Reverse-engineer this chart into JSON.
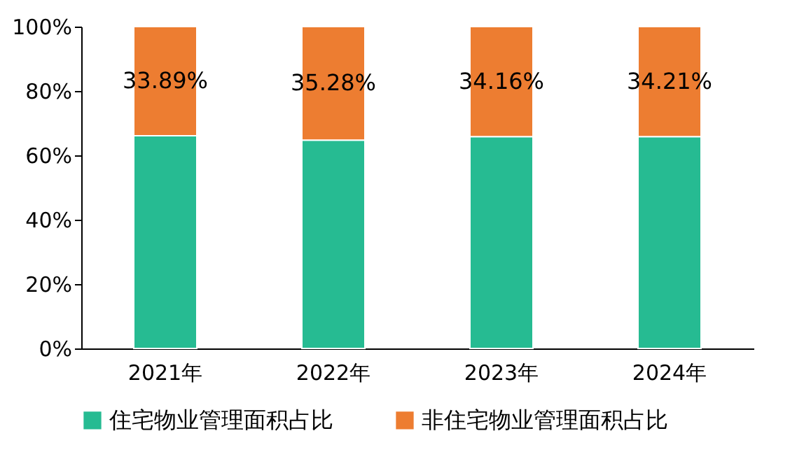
{
  "chart_data": {
    "type": "bar",
    "stacked": true,
    "categories": [
      "2021年",
      "2022年",
      "2023年",
      "2024年"
    ],
    "series": [
      {
        "name": "住宅物业管理面积占比",
        "color": "#26bb92",
        "values": [
          66.11,
          64.72,
          65.84,
          65.79
        ]
      },
      {
        "name": "非住宅物业管理面积占比",
        "color": "#ed7d31",
        "values": [
          33.89,
          35.28,
          34.16,
          34.21
        ],
        "value_labels": [
          "33.89%",
          "35.28%",
          "34.16%",
          "34.21%"
        ]
      }
    ],
    "ylim": [
      0,
      100
    ],
    "yticks": [
      {
        "value": 0,
        "label": "0%"
      },
      {
        "value": 20,
        "label": "20%"
      },
      {
        "value": 40,
        "label": "40%"
      },
      {
        "value": 60,
        "label": "60%"
      },
      {
        "value": 80,
        "label": "80%"
      },
      {
        "value": 100,
        "label": "100%"
      }
    ],
    "grid": false,
    "legend": "bottom"
  }
}
